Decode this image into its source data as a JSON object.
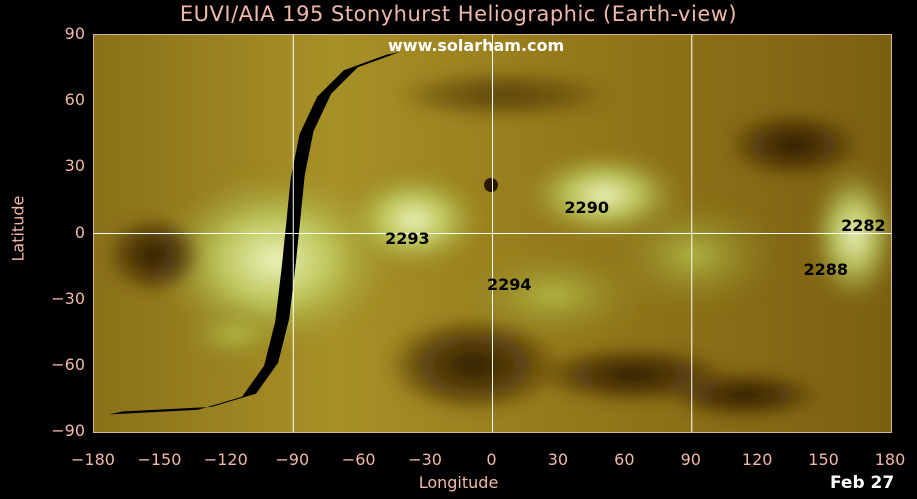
{
  "title": "EUVI/AIA 195 Stonyhurst Heliographic (Earth-view)",
  "watermark": "www.solarham.com",
  "date": "Feb 27",
  "colors": {
    "background": "#000000",
    "axis_text": "#f0b8a8",
    "sun_base": "#8a6a10",
    "sun_bright": "#e8f0a0",
    "sun_dark": "#3a2508",
    "grid": "#ffffff",
    "terminator": "#000000"
  },
  "chart_data": {
    "type": "heatmap",
    "title": "EUVI/AIA 195 Stonyhurst Heliographic (Earth-view)",
    "xlabel": "Longitude",
    "ylabel": "Latitude",
    "xlim": [
      -180,
      180
    ],
    "ylim": [
      -90,
      90
    ],
    "x_ticks": [
      "-180",
      "-150",
      "-120",
      "-90",
      "-60",
      "-30",
      "0",
      "30",
      "60",
      "90",
      "120",
      "150",
      "180"
    ],
    "y_ticks": [
      "90",
      "60",
      "30",
      "0",
      "-30",
      "-60",
      "-90"
    ],
    "grid_lines": {
      "longitude": [
        -90,
        0,
        90
      ],
      "latitude": [
        0
      ]
    },
    "active_regions": [
      {
        "label": "2293",
        "lon": -38,
        "lat": -3
      },
      {
        "label": "2290",
        "lon": 43,
        "lat": 11
      },
      {
        "label": "2294",
        "lon": 8,
        "lat": -24
      },
      {
        "label": "2282",
        "lon": 168,
        "lat": 3
      },
      {
        "label": "2288",
        "lon": 151,
        "lat": -17
      }
    ],
    "terminator": [
      {
        "lon": -170,
        "lat": -82
      },
      {
        "lon": -130,
        "lat": -80
      },
      {
        "lon": -110,
        "lat": -74
      },
      {
        "lon": -100,
        "lat": -60
      },
      {
        "lon": -95,
        "lat": -40
      },
      {
        "lon": -92,
        "lat": -15
      },
      {
        "lon": -90,
        "lat": 5
      },
      {
        "lon": -88,
        "lat": 25
      },
      {
        "lon": -84,
        "lat": 45
      },
      {
        "lon": -76,
        "lat": 62
      },
      {
        "lon": -64,
        "lat": 74
      },
      {
        "lon": -45,
        "lat": 81
      }
    ]
  }
}
